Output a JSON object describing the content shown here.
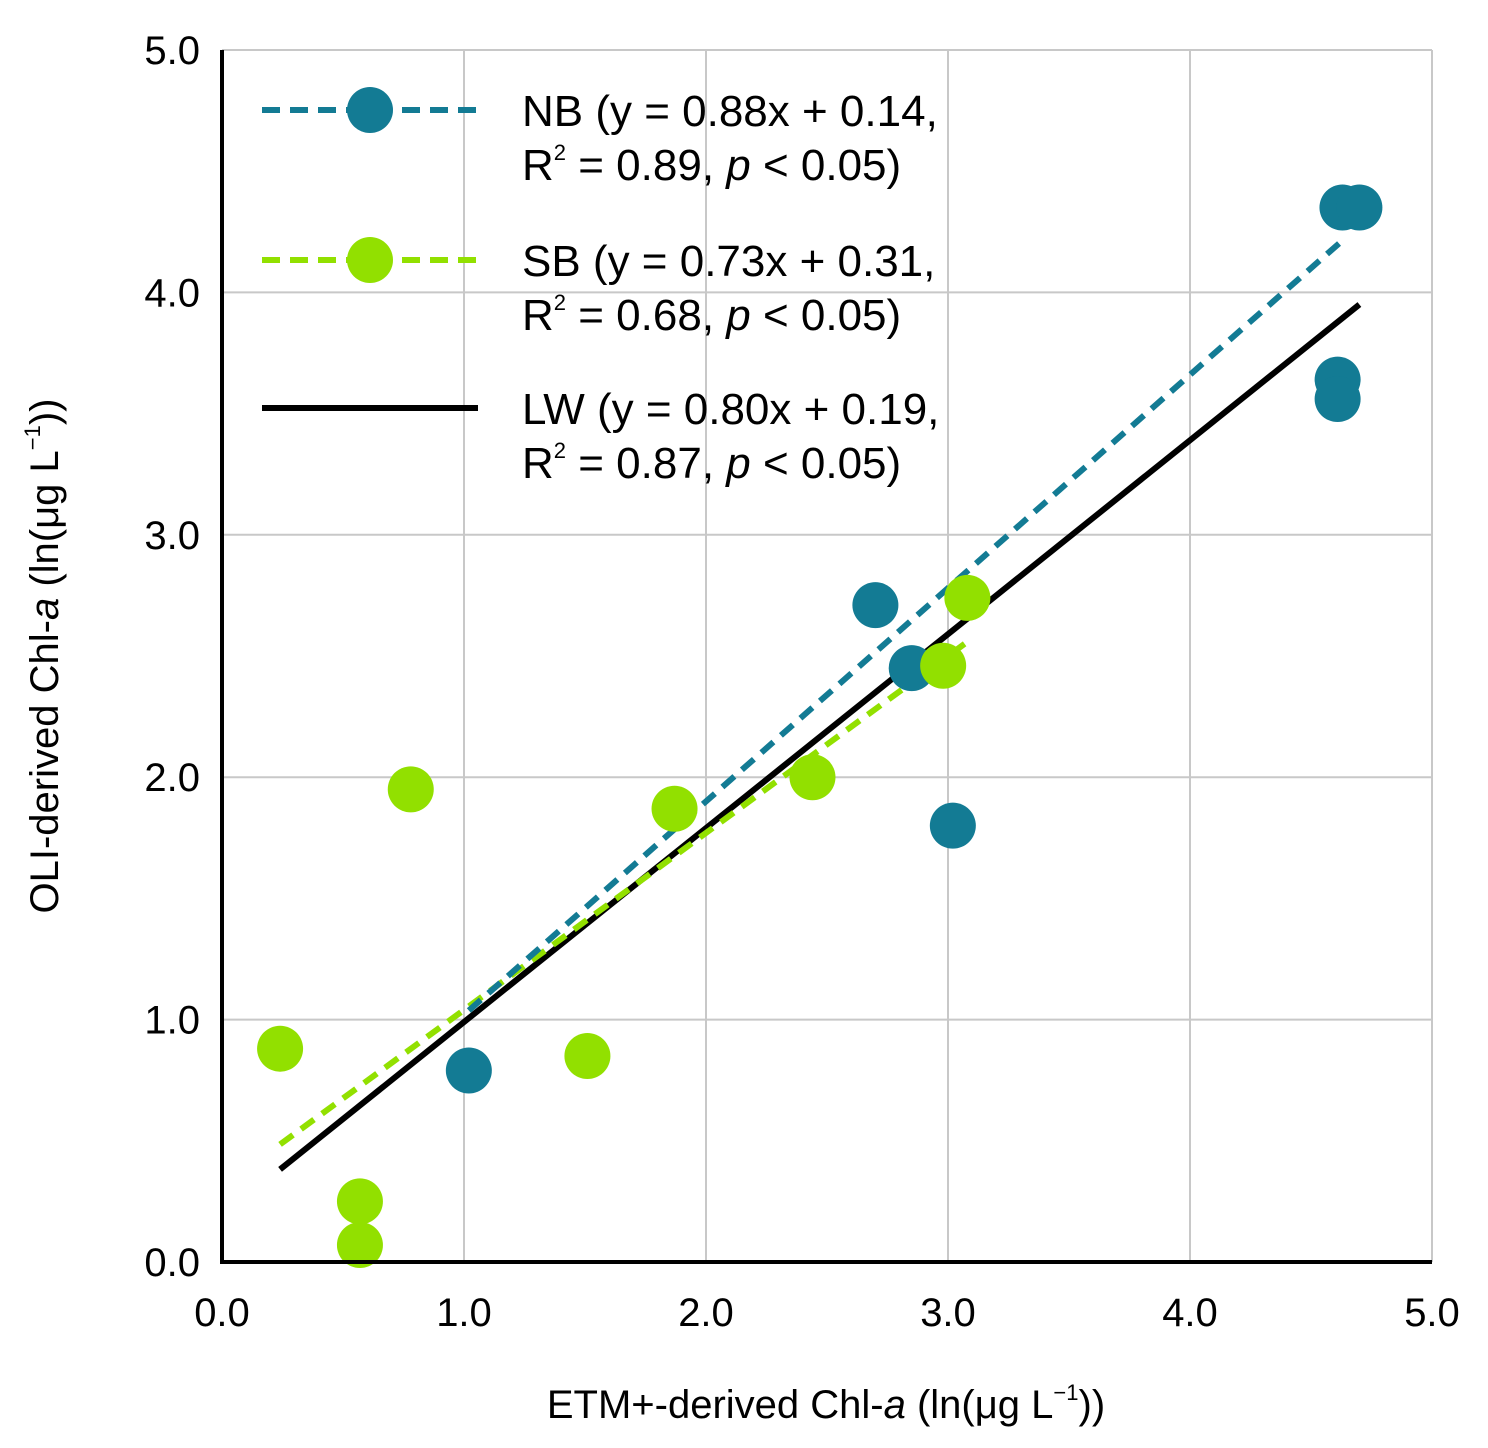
{
  "chart_data": {
    "type": "scatter",
    "xlabel": {
      "prefix": "ETM+-derived Chl-",
      "italic": "a",
      "suffix": " (ln(μg L",
      "sup": "−1",
      "close": "))"
    },
    "ylabel": {
      "prefix": "OLI-derived Chl-",
      "italic": "a",
      "suffix": " (ln(μg L",
      "sup": "−1",
      "close": "))"
    },
    "xlim": [
      0,
      5
    ],
    "ylim": [
      0,
      5
    ],
    "xticks": [
      "0.0",
      "1.0",
      "2.0",
      "3.0",
      "4.0",
      "5.0"
    ],
    "yticks": [
      "0.0",
      "1.0",
      "2.0",
      "3.0",
      "4.0",
      "5.0"
    ],
    "grid": true,
    "legend_position": "top-left",
    "series": [
      {
        "name": "NB",
        "color": "#137b94",
        "line_style": "dashed",
        "marker": true,
        "label_line1": "NB (y = 0.88x + 0.14,",
        "label_r": "R",
        "label_r_sup": "2",
        "label_line2_mid": " = 0.89, ",
        "label_p": "p",
        "label_line2_end": " < 0.05)",
        "fit": {
          "slope": 0.88,
          "intercept": 0.14,
          "x_range": [
            1.02,
            4.63
          ]
        },
        "points": [
          {
            "x": 1.02,
            "y": 0.79
          },
          {
            "x": 2.7,
            "y": 2.71
          },
          {
            "x": 2.85,
            "y": 2.45
          },
          {
            "x": 3.02,
            "y": 1.8
          },
          {
            "x": 4.61,
            "y": 3.64
          },
          {
            "x": 4.61,
            "y": 3.56
          },
          {
            "x": 4.63,
            "y": 4.35
          },
          {
            "x": 4.7,
            "y": 4.35
          }
        ]
      },
      {
        "name": "SB",
        "color": "#92e000",
        "line_style": "dashed",
        "marker": true,
        "label_line1": "SB (y = 0.73x + 0.31,",
        "label_r": "R",
        "label_r_sup": "2",
        "label_line2_mid": " = 0.68, ",
        "label_p": "p",
        "label_line2_end": " < 0.05)",
        "fit": {
          "slope": 0.73,
          "intercept": 0.31,
          "x_range": [
            0.24,
            3.08
          ]
        },
        "points": [
          {
            "x": 0.24,
            "y": 0.88
          },
          {
            "x": 0.57,
            "y": 0.25
          },
          {
            "x": 0.57,
            "y": 0.07
          },
          {
            "x": 0.78,
            "y": 1.95
          },
          {
            "x": 1.51,
            "y": 0.85
          },
          {
            "x": 1.87,
            "y": 1.87
          },
          {
            "x": 2.44,
            "y": 2.0
          },
          {
            "x": 2.98,
            "y": 2.46
          },
          {
            "x": 3.08,
            "y": 2.74
          }
        ]
      },
      {
        "name": "LW",
        "color": "#000000",
        "line_style": "solid",
        "marker": false,
        "label_line1": "LW (y = 0.80x + 0.19,",
        "label_r": "R",
        "label_r_sup": "2",
        "label_line2_mid": " = 0.87, ",
        "label_p": "p",
        "label_line2_end": " < 0.05)",
        "fit": {
          "slope": 0.8,
          "intercept": 0.19,
          "x_range": [
            0.24,
            4.7
          ]
        },
        "points": []
      }
    ]
  }
}
